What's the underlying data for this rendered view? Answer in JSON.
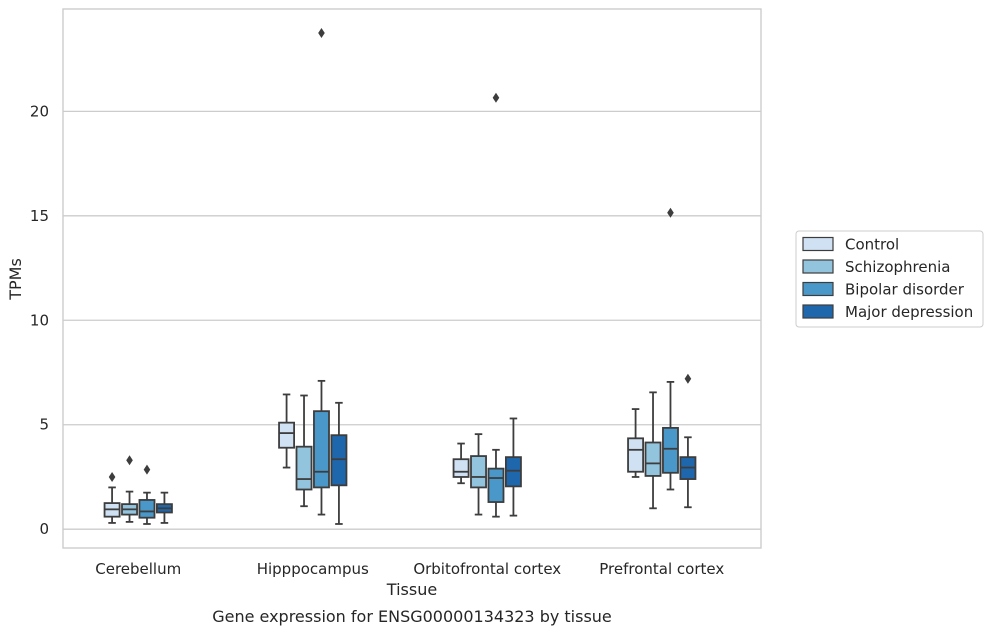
{
  "chart_data": {
    "type": "boxplot",
    "caption": "Gene expression for ENSG00000134323 by tissue",
    "xlabel": "Tissue",
    "ylabel": "TPMs",
    "ylim": [
      -0.9,
      24.9
    ],
    "yticks": [
      0,
      5,
      10,
      15,
      20
    ],
    "grid": true,
    "legend_placement": "right",
    "categories": [
      "Cerebellum",
      "Hipppocampus",
      "Orbitofrontal cortex",
      "Prefrontal cortex"
    ],
    "series": [
      {
        "name": "Control",
        "color": "#cfe1f2",
        "boxes": [
          {
            "whisker_low": 0.3,
            "q1": 0.6,
            "median": 0.95,
            "q3": 1.25,
            "whisker_high": 2.0,
            "outliers": [
              2.5
            ]
          },
          {
            "whisker_low": 2.95,
            "q1": 3.9,
            "median": 4.6,
            "q3": 5.1,
            "whisker_high": 6.45,
            "outliers": []
          },
          {
            "whisker_low": 2.2,
            "q1": 2.5,
            "median": 2.75,
            "q3": 3.35,
            "whisker_high": 4.1,
            "outliers": []
          },
          {
            "whisker_low": 2.5,
            "q1": 2.75,
            "median": 3.8,
            "q3": 4.35,
            "whisker_high": 5.75,
            "outliers": []
          }
        ]
      },
      {
        "name": "Schizophrenia",
        "color": "#93c4de",
        "boxes": [
          {
            "whisker_low": 0.35,
            "q1": 0.7,
            "median": 0.95,
            "q3": 1.2,
            "whisker_high": 1.8,
            "outliers": [
              3.3
            ]
          },
          {
            "whisker_low": 1.1,
            "q1": 1.9,
            "median": 2.4,
            "q3": 3.95,
            "whisker_high": 6.4,
            "outliers": []
          },
          {
            "whisker_low": 0.7,
            "q1": 2.0,
            "median": 2.5,
            "q3": 3.5,
            "whisker_high": 4.55,
            "outliers": []
          },
          {
            "whisker_low": 1.0,
            "q1": 2.55,
            "median": 3.15,
            "q3": 4.15,
            "whisker_high": 6.55,
            "outliers": []
          }
        ]
      },
      {
        "name": "Bipolar disorder",
        "color": "#4a98c9",
        "boxes": [
          {
            "whisker_low": 0.25,
            "q1": 0.55,
            "median": 0.85,
            "q3": 1.4,
            "whisker_high": 1.75,
            "outliers": [
              2.85
            ]
          },
          {
            "whisker_low": 0.7,
            "q1": 2.0,
            "median": 2.75,
            "q3": 5.65,
            "whisker_high": 7.1,
            "outliers": [
              23.75
            ]
          },
          {
            "whisker_low": 0.6,
            "q1": 1.3,
            "median": 2.45,
            "q3": 2.9,
            "whisker_high": 3.8,
            "outliers": [
              20.65
            ]
          },
          {
            "whisker_low": 1.9,
            "q1": 2.7,
            "median": 3.85,
            "q3": 4.85,
            "whisker_high": 7.05,
            "outliers": [
              15.15
            ]
          }
        ]
      },
      {
        "name": "Major depression",
        "color": "#1f67ac",
        "boxes": [
          {
            "whisker_low": 0.3,
            "q1": 0.8,
            "median": 1.0,
            "q3": 1.2,
            "whisker_high": 1.75,
            "outliers": []
          },
          {
            "whisker_low": 0.25,
            "q1": 2.1,
            "median": 3.35,
            "q3": 4.5,
            "whisker_high": 6.05,
            "outliers": []
          },
          {
            "whisker_low": 0.65,
            "q1": 2.05,
            "median": 2.8,
            "q3": 3.45,
            "whisker_high": 5.3,
            "outliers": []
          },
          {
            "whisker_low": 1.05,
            "q1": 2.4,
            "median": 2.95,
            "q3": 3.45,
            "whisker_high": 4.4,
            "outliers": [
              7.2
            ]
          }
        ]
      }
    ]
  }
}
